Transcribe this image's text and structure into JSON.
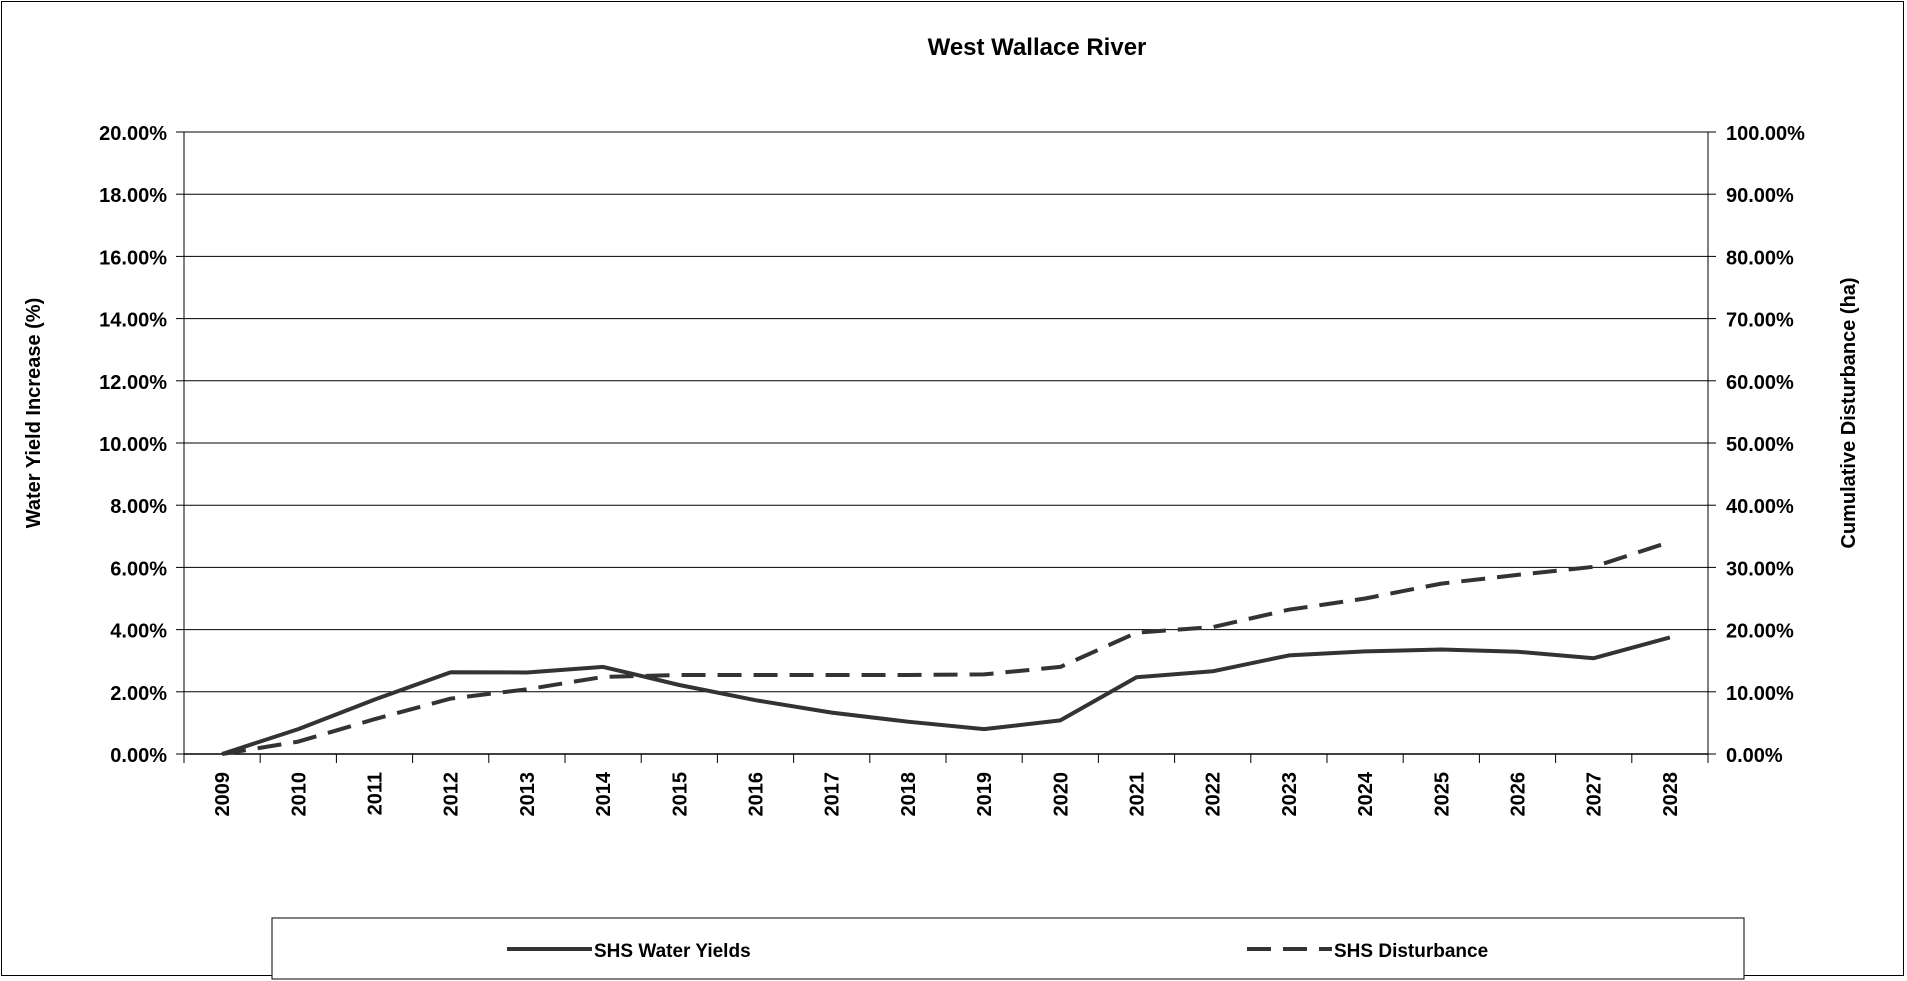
{
  "chart_data": {
    "type": "line",
    "title": "West Wallace River",
    "xlabel": "",
    "ylabel": "Water Yield Increase (%)",
    "y2label": "Cumulative Disturbance (ha)",
    "categories": [
      "2009",
      "2010",
      "2011",
      "2012",
      "2013",
      "2014",
      "2015",
      "2016",
      "2017",
      "2018",
      "2019",
      "2020",
      "2021",
      "2022",
      "2023",
      "2024",
      "2025",
      "2026",
      "2027",
      "2028"
    ],
    "ylim": [
      0,
      20
    ],
    "y2lim": [
      0,
      100
    ],
    "yticks": [
      "0.00%",
      "2.00%",
      "4.00%",
      "6.00%",
      "8.00%",
      "10.00%",
      "12.00%",
      "14.00%",
      "16.00%",
      "18.00%",
      "20.00%"
    ],
    "y2ticks": [
      "0.00%",
      "10.00%",
      "20.00%",
      "30.00%",
      "40.00%",
      "50.00%",
      "60.00%",
      "70.00%",
      "80.00%",
      "90.00%",
      "100.00%"
    ],
    "grid": true,
    "legend_position": "bottom",
    "series": [
      {
        "name": "SHS Water Yields",
        "axis": "left",
        "style": "solid",
        "color": "#333333",
        "values": [
          0.0,
          0.8,
          1.75,
          2.63,
          2.62,
          2.8,
          2.22,
          1.73,
          1.33,
          1.04,
          0.8,
          1.08,
          2.47,
          2.66,
          3.17,
          3.3,
          3.36,
          3.29,
          3.08,
          3.75
        ]
      },
      {
        "name": "SHS Disturbance",
        "axis": "right",
        "style": "dashed",
        "color": "#333333",
        "values": [
          0.0,
          2.0,
          5.6,
          8.9,
          10.4,
          12.4,
          12.7,
          12.7,
          12.7,
          12.7,
          12.8,
          14.0,
          19.5,
          20.4,
          23.2,
          25.0,
          27.4,
          28.8,
          30.1,
          34.1
        ]
      }
    ]
  }
}
